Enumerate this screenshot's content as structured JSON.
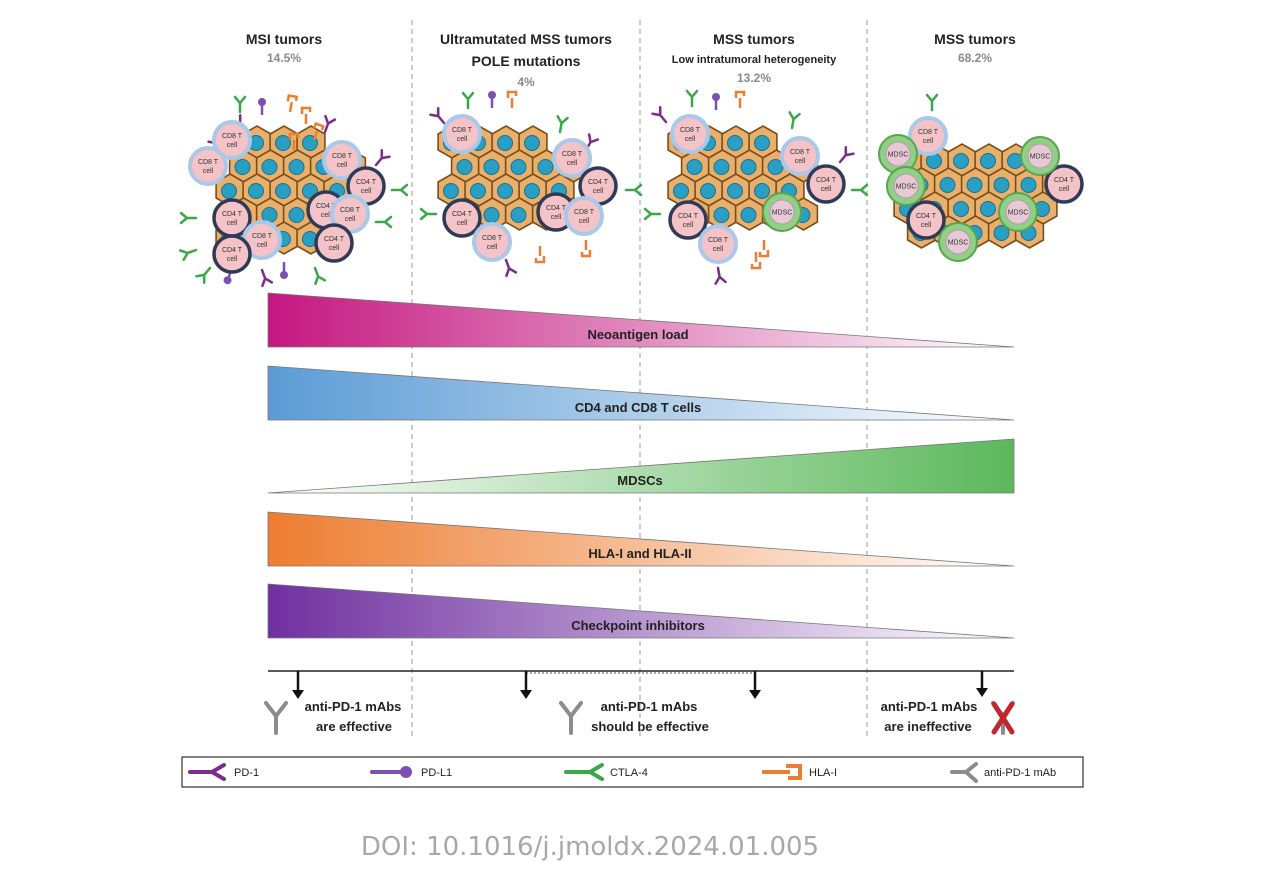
{
  "columns": [
    {
      "title": "MSI tumors",
      "subtitle": "",
      "percent": "14.5%"
    },
    {
      "title": "Ultramutated MSS tumors",
      "subtitle": "POLE mutations",
      "percent": "4%"
    },
    {
      "title": "MSS tumors",
      "subtitle": "Low intratumoral heterogeneity",
      "percent": "13.2%"
    },
    {
      "title": "MSS tumors",
      "subtitle": "",
      "percent": "68.2%"
    }
  ],
  "cell_labels": {
    "cd8": "CD8 T",
    "cd4": "CD4 T",
    "cell": "cell",
    "mdsc": "MDSC"
  },
  "bars": [
    {
      "label": "Neoantigen load",
      "color": "#c4177f",
      "direction": "decreasing"
    },
    {
      "label": "CD4 and CD8 T cells",
      "color": "#5b9bd5",
      "direction": "decreasing"
    },
    {
      "label": "MDSCs",
      "color": "#5cb85c",
      "direction": "increasing"
    },
    {
      "label": "HLA-I and HLA-II",
      "color": "#ed7d31",
      "direction": "decreasing"
    },
    {
      "label": "Checkpoint inhibitors",
      "color": "#7030a0",
      "direction": "decreasing"
    }
  ],
  "outcomes": {
    "effective_1": "anti-PD-1 mAbs",
    "effective_2": "are effective",
    "should_1": "anti-PD-1 mAbs",
    "should_2": "should be effective",
    "ineffective_1": "anti-PD-1 mAbs",
    "ineffective_2": "are ineffective"
  },
  "legend": [
    {
      "label": "PD-1",
      "color": "#7b2c8e",
      "icon": "pd1-receptor-icon"
    },
    {
      "label": "PD-L1",
      "color": "#7b4fb3",
      "icon": "pdl1-ligand-icon"
    },
    {
      "label": "CTLA-4",
      "color": "#3aa84a",
      "icon": "ctla4-receptor-icon"
    },
    {
      "label": "HLA-I",
      "color": "#ed7d31",
      "icon": "hla-i-icon"
    },
    {
      "label": "anti-PD-1 mAb",
      "color": "#8c8c8c",
      "icon": "antibody-icon"
    }
  ],
  "doi": "DOI: 10.1016/j.jmoldx.2024.01.005"
}
